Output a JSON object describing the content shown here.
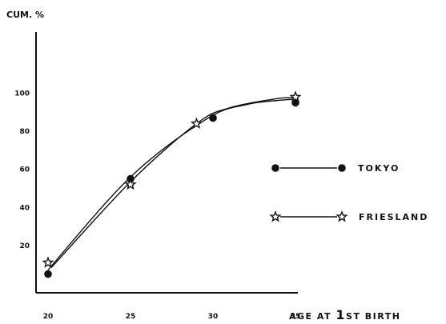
{
  "chart_data": {
    "type": "line",
    "ylabel": "CUM. %",
    "xlabel_prefix": "AGE AT ",
    "xlabel_big": "1",
    "xlabel_suffix": "ST BIRTH",
    "xlim": [
      18,
      37
    ],
    "ylim": [
      0,
      105
    ],
    "x_ticks": [
      "20",
      "25",
      "30",
      "35"
    ],
    "y_ticks": [
      "20",
      "40",
      "60",
      "80",
      "100"
    ],
    "grid": false,
    "legend_position": "right",
    "series": [
      {
        "name": "TOKYO",
        "marker": "circle",
        "x": [
          20,
          25,
          30,
          35
        ],
        "y": [
          5,
          55,
          87,
          95
        ]
      },
      {
        "name": "FRIESLAND",
        "marker": "star",
        "x": [
          20,
          25,
          29,
          35
        ],
        "y": [
          11,
          52,
          84,
          98
        ]
      }
    ]
  }
}
